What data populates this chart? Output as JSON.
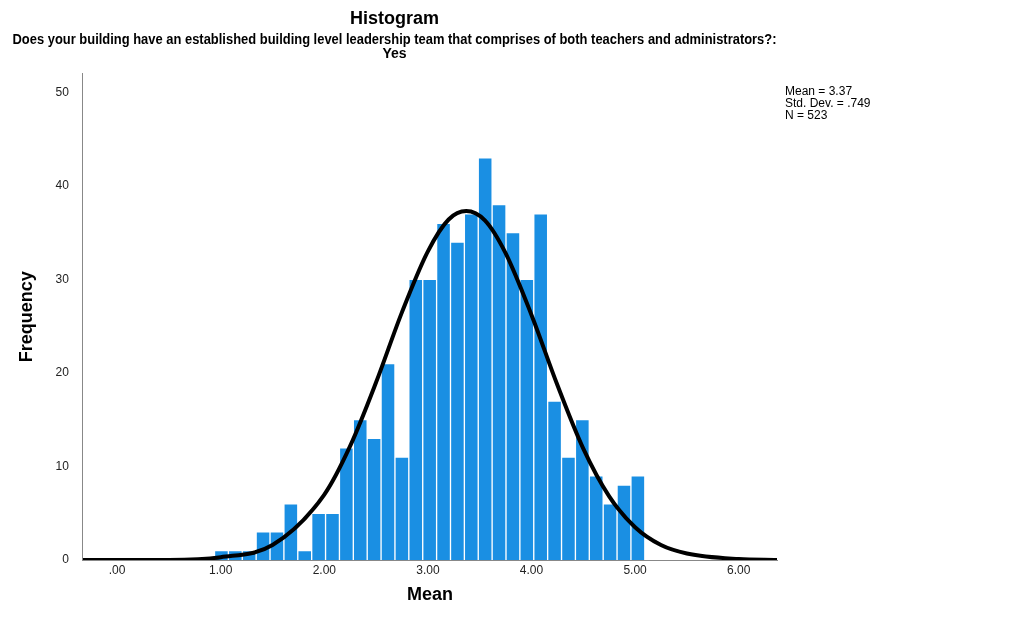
{
  "chart_data": {
    "type": "histogram",
    "title": "Histogram",
    "subtitle": "Does your building have an established building level leadership team that comprises of both teachers and administrators?:\nYes",
    "xlabel": "Mean",
    "ylabel": "Frequency",
    "bins": [
      0.94,
      1.074,
      1.208,
      1.342,
      1.476,
      1.61,
      1.744,
      1.878,
      2.012,
      2.146,
      2.28,
      2.414,
      2.548,
      2.682,
      2.816,
      2.95,
      3.084,
      3.218,
      3.352,
      3.486,
      3.62,
      3.754,
      3.888,
      4.022,
      4.156,
      4.29,
      4.424,
      4.558,
      4.692,
      4.826,
      4.96,
      5.094
    ],
    "values": [
      1,
      1,
      1,
      3,
      3,
      6,
      1,
      5,
      5,
      12,
      15,
      13,
      21,
      11,
      30,
      30,
      36,
      34,
      37,
      43,
      38,
      35,
      30,
      37,
      17,
      11,
      15,
      9,
      6,
      8,
      9
    ],
    "color": "#1a8fe3",
    "series": [
      {
        "type": "line",
        "color": "#000000",
        "x": [
          -0.33,
          0.5,
          1.0,
          1.5,
          2.0,
          2.25,
          2.5,
          2.75,
          3.0,
          3.2,
          3.37,
          3.55,
          3.75,
          4.0,
          4.25,
          4.5,
          4.75,
          5.0,
          5.25,
          5.5,
          6.0,
          6.37
        ],
        "values": [
          0,
          0,
          0.3,
          1.6,
          7.0,
          12.2,
          19.0,
          26.5,
          33.0,
          36.4,
          37.3,
          36.3,
          32.8,
          26.2,
          18.7,
          11.9,
          6.8,
          3.5,
          1.6,
          0.7,
          0.1,
          0
        ]
      }
    ],
    "annotations": [
      "Mean = 3.37\nStd. Dev. = .749\nN = 523"
    ],
    "xlim": [
      -0.33,
      6.37
    ],
    "xticks": [
      {
        "value": 0,
        "label": ".00"
      },
      {
        "value": 1,
        "label": "1.00"
      },
      {
        "value": 2,
        "label": "2.00"
      },
      {
        "value": 3,
        "label": "3.00"
      },
      {
        "value": 4,
        "label": "4.00"
      },
      {
        "value": 5,
        "label": "5.00"
      },
      {
        "value": 6,
        "label": "6.00"
      }
    ],
    "ylim": [
      0,
      52
    ],
    "yticks": [
      0,
      10,
      20,
      30,
      40,
      50
    ],
    "grid": false,
    "legend": false
  }
}
